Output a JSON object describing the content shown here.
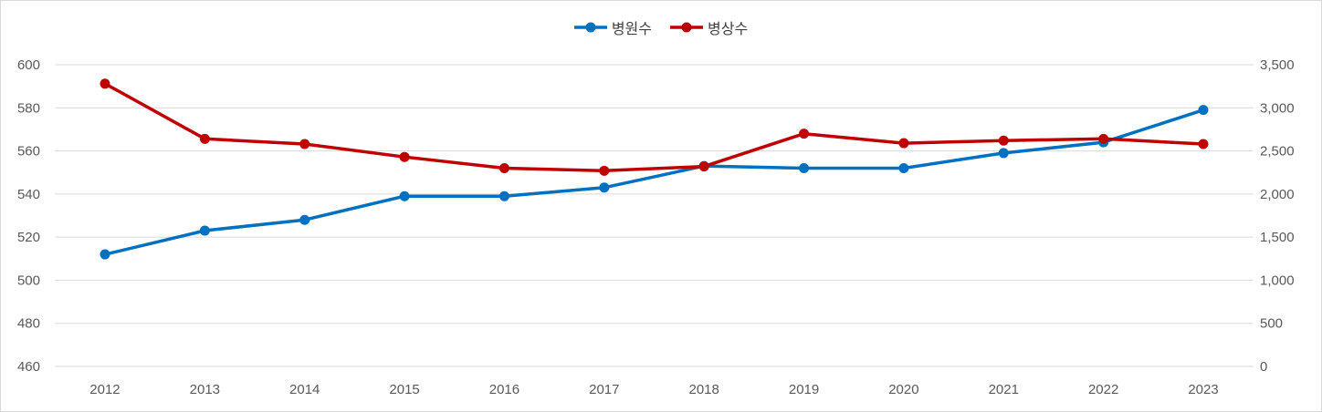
{
  "chart_data": {
    "type": "line",
    "categories": [
      "2012",
      "2013",
      "2014",
      "2015",
      "2016",
      "2017",
      "2018",
      "2019",
      "2020",
      "2021",
      "2022",
      "2023"
    ],
    "series": [
      {
        "name": "병원수",
        "axis": "left",
        "color": "#0070C0",
        "values": [
          512,
          523,
          528,
          539,
          539,
          543,
          553,
          552,
          552,
          559,
          564,
          579
        ]
      },
      {
        "name": "병상수",
        "axis": "right",
        "color": "#C00000",
        "values": [
          3280,
          2640,
          2580,
          2430,
          2300,
          2270,
          2320,
          2700,
          2590,
          2620,
          2640,
          2580
        ]
      }
    ],
    "y_left": {
      "range": [
        460,
        600
      ],
      "ticks": [
        460,
        480,
        500,
        520,
        540,
        560,
        580,
        600
      ],
      "tick_labels": [
        "460",
        "480",
        "500",
        "520",
        "540",
        "560",
        "580",
        "600"
      ]
    },
    "y_right": {
      "range": [
        0,
        3500
      ],
      "ticks": [
        0,
        500,
        1000,
        1500,
        2000,
        2500,
        3000,
        3500
      ],
      "tick_labels": [
        "0",
        "500",
        "1,000",
        "1,500",
        "2,000",
        "2,500",
        "3,000",
        "3,500"
      ]
    },
    "legend": "top-center",
    "grid": true,
    "gridline_color": "#D9D9D9",
    "text_color": "#595959"
  }
}
